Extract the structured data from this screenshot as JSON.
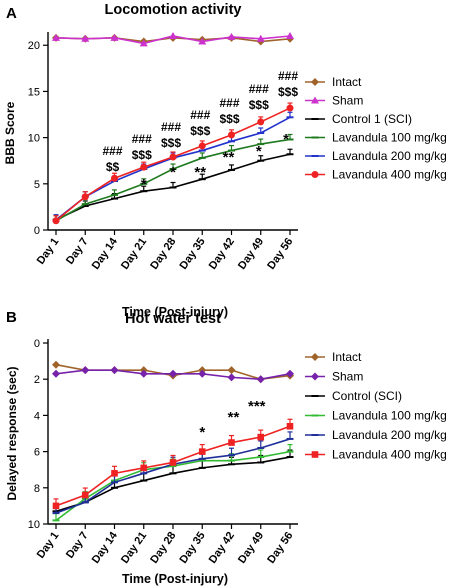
{
  "chart_data": [
    {
      "type": "line",
      "panel_label": "A",
      "title": "Locomotion activity",
      "xlabel": "Time (Post-injury)",
      "ylabel": "BBB Score",
      "categories": [
        "Day 1",
        "Day 7",
        "Day 14",
        "Day 21",
        "Day 28",
        "Day 35",
        "Day 42",
        "Day 49",
        "Day 56"
      ],
      "ylim": [
        0,
        21
      ],
      "yticks": [
        0,
        5,
        10,
        15,
        20
      ],
      "inverted_y": false,
      "legend_position": "right",
      "series": [
        {
          "name": "Intact",
          "color": "#a0642a",
          "marker": "diamond",
          "values": [
            20.8,
            20.7,
            20.8,
            20.4,
            20.8,
            20.6,
            20.8,
            20.4,
            20.7
          ]
        },
        {
          "name": "Sham",
          "color": "#cc33cc",
          "marker": "triangle",
          "values": [
            20.8,
            20.7,
            20.8,
            20.2,
            21.0,
            20.4,
            20.9,
            20.7,
            21.0
          ]
        },
        {
          "name": "Control 1 (SCI)",
          "color": "#000000",
          "marker": "dash",
          "values": [
            1.1,
            2.6,
            3.4,
            4.2,
            4.6,
            5.5,
            6.5,
            7.5,
            8.2
          ]
        },
        {
          "name": "Lavandula 100 mg/kg",
          "color": "#1f7a1f",
          "marker": "dash",
          "values": [
            1.0,
            2.8,
            3.8,
            5.0,
            6.6,
            7.8,
            8.6,
            9.3,
            9.8
          ]
        },
        {
          "name": "Lavandula 200 mg/kg",
          "color": "#2233cc",
          "marker": "dash",
          "values": [
            1.1,
            3.6,
            5.3,
            6.6,
            7.8,
            8.6,
            9.6,
            10.5,
            12.2
          ]
        },
        {
          "name": "Lavandula 400 mg/kg",
          "color": "#ee2222",
          "marker": "circle",
          "values": [
            1.0,
            3.6,
            5.6,
            6.8,
            7.9,
            9.1,
            10.3,
            11.7,
            13.2
          ]
        }
      ],
      "annotations": [
        {
          "x": "Day 14",
          "lines": [
            "###",
            "$$"
          ]
        },
        {
          "x": "Day 21",
          "lines": [
            "###",
            "$$$"
          ]
        },
        {
          "x": "Day 28",
          "lines": [
            "###",
            "$$$"
          ]
        },
        {
          "x": "Day 35",
          "lines": [
            "###",
            "$$$"
          ]
        },
        {
          "x": "Day 42",
          "lines": [
            "###",
            "$$$"
          ]
        },
        {
          "x": "Day 49",
          "lines": [
            "###",
            "$$$"
          ]
        },
        {
          "x": "Day 56",
          "lines": [
            "###",
            "$$$"
          ]
        }
      ],
      "stars": [
        {
          "x": "Day 21",
          "text": "*"
        },
        {
          "x": "Day 28",
          "text": "*"
        },
        {
          "x": "Day 35",
          "text": "**"
        },
        {
          "x": "Day 42",
          "text": "**"
        },
        {
          "x": "Day 49",
          "text": "*"
        },
        {
          "x": "Day 56",
          "text": "*"
        }
      ]
    },
    {
      "type": "line",
      "panel_label": "B",
      "title": "Hot water test",
      "xlabel": "Time (Post-injury)",
      "ylabel": "Delayed response (sec)",
      "categories": [
        "Day 1",
        "Day 7",
        "Day 14",
        "Day 21",
        "Day 28",
        "Day 35",
        "Day 42",
        "Day 49",
        "Day 56"
      ],
      "ylim": [
        0,
        10
      ],
      "yticks": [
        0,
        2,
        4,
        6,
        8,
        10
      ],
      "inverted_y": true,
      "legend_position": "right",
      "series": [
        {
          "name": "Intact",
          "color": "#a0642a",
          "marker": "diamond",
          "values": [
            1.2,
            1.5,
            1.5,
            1.5,
            1.8,
            1.5,
            1.5,
            2.0,
            1.8
          ]
        },
        {
          "name": "Sham",
          "color": "#7722aa",
          "marker": "diamond",
          "values": [
            1.7,
            1.5,
            1.5,
            1.7,
            1.7,
            1.7,
            1.9,
            2.0,
            1.7
          ]
        },
        {
          "name": "Control (SCI)",
          "color": "#000000",
          "marker": "dash",
          "values": [
            9.3,
            8.8,
            8.0,
            7.6,
            7.2,
            6.9,
            6.7,
            6.6,
            6.3
          ]
        },
        {
          "name": "Lavandula 100 mg/kg",
          "color": "#33bb33",
          "marker": "dash",
          "values": [
            9.8,
            8.6,
            7.6,
            7.0,
            6.8,
            6.5,
            6.5,
            6.3,
            6.0
          ]
        },
        {
          "name": "Lavandula 200 mg/kg",
          "color": "#1f2f99",
          "marker": "dash",
          "values": [
            9.4,
            8.8,
            7.7,
            7.2,
            6.7,
            6.4,
            6.2,
            5.8,
            5.3
          ]
        },
        {
          "name": "Lavandula 400 mg/kg",
          "color": "#ee2222",
          "marker": "square",
          "values": [
            9.0,
            8.4,
            7.2,
            6.9,
            6.6,
            6.0,
            5.5,
            5.2,
            4.6
          ]
        }
      ],
      "stars": [
        {
          "x": "Day 35",
          "text": "*"
        },
        {
          "x": "Day 42",
          "text": "**"
        },
        {
          "x": "Day 49",
          "text": "***"
        }
      ]
    }
  ]
}
